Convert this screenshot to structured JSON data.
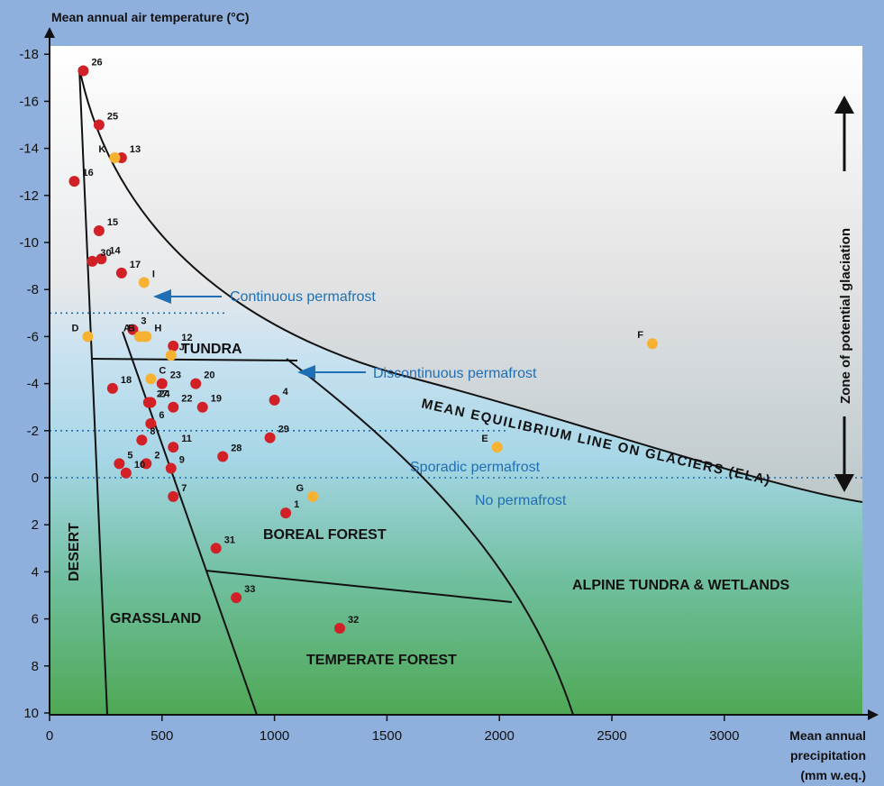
{
  "chart_data": {
    "type": "scatter",
    "ylabel": "Mean annual air temperature (°C)",
    "xlabel_lines": [
      "Mean annual",
      "precipitation",
      "(mm w.eq.)"
    ],
    "xlim": [
      0,
      3600
    ],
    "ylim": [
      -19,
      10
    ],
    "y_inverted": true,
    "x_ticks": [
      0,
      500,
      1000,
      1500,
      2000,
      2500,
      3000
    ],
    "x_tick_labels": [
      "0",
      "500",
      "1000",
      "1500",
      "2000",
      "2500",
      "3000"
    ],
    "y_ticks": [
      -18,
      -16,
      -14,
      -12,
      -10,
      -8,
      -6,
      -4,
      -2,
      0,
      2,
      4,
      6,
      8,
      10
    ],
    "y_tick_labels": [
      "-18",
      "-16",
      "-14",
      "-12",
      "-10",
      "-8",
      "-6",
      "-4",
      "-2",
      "0",
      "2",
      "4",
      "6",
      "8",
      "10"
    ],
    "colors": {
      "red_point": "#d22027",
      "orange_point": "#f7b234",
      "permafrost_text": "#1f6fb6",
      "outer_background": "#8fb0dd"
    },
    "zone_labels": {
      "tundra": "TUNDRA",
      "desert": "DESERT",
      "grassland": "GRASSLAND",
      "boreal": "BOREAL FOREST",
      "temperate": "TEMPERATE FOREST",
      "alpine": "ALPINE TUNDRA & WETLANDS"
    },
    "permafrost_labels": {
      "continuous": "Continuous permafrost",
      "discontinuous": "Discontinuous permafrost",
      "sporadic": "Sporadic permafrost",
      "none": "No permafrost"
    },
    "permafrost_thresholds": [
      -7,
      -2,
      0
    ],
    "ela_label": "MEAN EQUILIBRIUM LINE ON GLACIERS (ELA)",
    "glaciation_label": "Zone of potential glaciation",
    "series": [
      {
        "color": "red",
        "points": [
          {
            "label": "1",
            "x": 1050,
            "y": 1.5
          },
          {
            "label": "2",
            "x": 430,
            "y": -0.6
          },
          {
            "label": "3",
            "x": 370,
            "y": -6.3
          },
          {
            "label": "4",
            "x": 1000,
            "y": -3.3
          },
          {
            "label": "5",
            "x": 310,
            "y": -0.6
          },
          {
            "label": "6",
            "x": 450,
            "y": -2.3
          },
          {
            "label": "7",
            "x": 550,
            "y": 0.8
          },
          {
            "label": "8",
            "x": 410,
            "y": -1.6
          },
          {
            "label": "9",
            "x": 540,
            "y": -0.4
          },
          {
            "label": "10",
            "x": 340,
            "y": -0.2
          },
          {
            "label": "11",
            "x": 550,
            "y": -1.3
          },
          {
            "label": "12",
            "x": 550,
            "y": -5.6
          },
          {
            "label": "13",
            "x": 320,
            "y": -13.6
          },
          {
            "label": "14",
            "x": 230,
            "y": -9.3
          },
          {
            "label": "15",
            "x": 220,
            "y": -10.5
          },
          {
            "label": "16",
            "x": 110,
            "y": -12.6
          },
          {
            "label": "17",
            "x": 320,
            "y": -8.7
          },
          {
            "label": "18",
            "x": 280,
            "y": -3.8
          },
          {
            "label": "19",
            "x": 680,
            "y": -3.0
          },
          {
            "label": "20",
            "x": 650,
            "y": -4.0
          },
          {
            "label": "22",
            "x": 550,
            "y": -3.0
          },
          {
            "label": "23",
            "x": 500,
            "y": -4.0
          },
          {
            "label": "24",
            "x": 450,
            "y": -3.2
          },
          {
            "label": "25",
            "x": 220,
            "y": -15.0
          },
          {
            "label": "26",
            "x": 150,
            "y": -17.3
          },
          {
            "label": "27",
            "x": 440,
            "y": -3.2
          },
          {
            "label": "28",
            "x": 770,
            "y": -0.9
          },
          {
            "label": "29",
            "x": 980,
            "y": -1.7
          },
          {
            "label": "30",
            "x": 190,
            "y": -9.2
          },
          {
            "label": "31",
            "x": 740,
            "y": 3.0
          },
          {
            "label": "32",
            "x": 1290,
            "y": 6.4
          },
          {
            "label": "33",
            "x": 830,
            "y": 5.1
          }
        ]
      },
      {
        "color": "orange",
        "points": [
          {
            "label": "A",
            "x": 400,
            "y": -6.0
          },
          {
            "label": "B",
            "x": 420,
            "y": -6.0
          },
          {
            "label": "C",
            "x": 450,
            "y": -4.2
          },
          {
            "label": "D",
            "x": 170,
            "y": -6.0
          },
          {
            "label": "E",
            "x": 1990,
            "y": -1.3
          },
          {
            "label": "F",
            "x": 2680,
            "y": -5.7
          },
          {
            "label": "G",
            "x": 1170,
            "y": 0.8
          },
          {
            "label": "H",
            "x": 430,
            "y": -6.0
          },
          {
            "label": "I",
            "x": 420,
            "y": -8.3
          },
          {
            "label": "J",
            "x": 540,
            "y": -5.2
          },
          {
            "label": "K",
            "x": 290,
            "y": -13.6
          }
        ]
      }
    ]
  }
}
